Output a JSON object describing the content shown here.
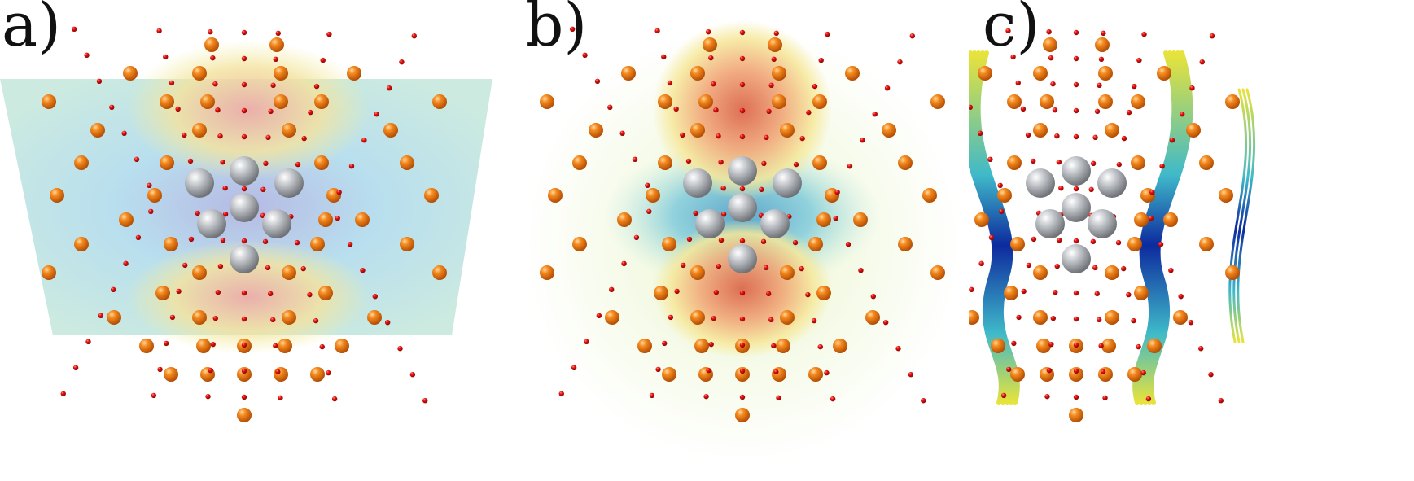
{
  "panels": [
    {
      "id": "a",
      "label": "a)",
      "colors": {
        "field_high": "#f2a6a0",
        "field_mid": "#f3ee9c",
        "field_low": "#a7d7ea",
        "field_center": "#a4a8dd"
      }
    },
    {
      "id": "b",
      "label": "b)",
      "colors": {
        "iso_high": "#d9573c",
        "iso_mid": "#f6e89a",
        "iso_low": "#59b8d6"
      }
    },
    {
      "id": "c",
      "label": "c)",
      "colors": {
        "stream_high": "#c31310",
        "stream_mid": "#e8e33a",
        "stream_low": "#0d2a9e"
      }
    }
  ],
  "atoms": {
    "large": "#f07f18",
    "small": "#e4110f",
    "center": "#b8bcc2"
  }
}
